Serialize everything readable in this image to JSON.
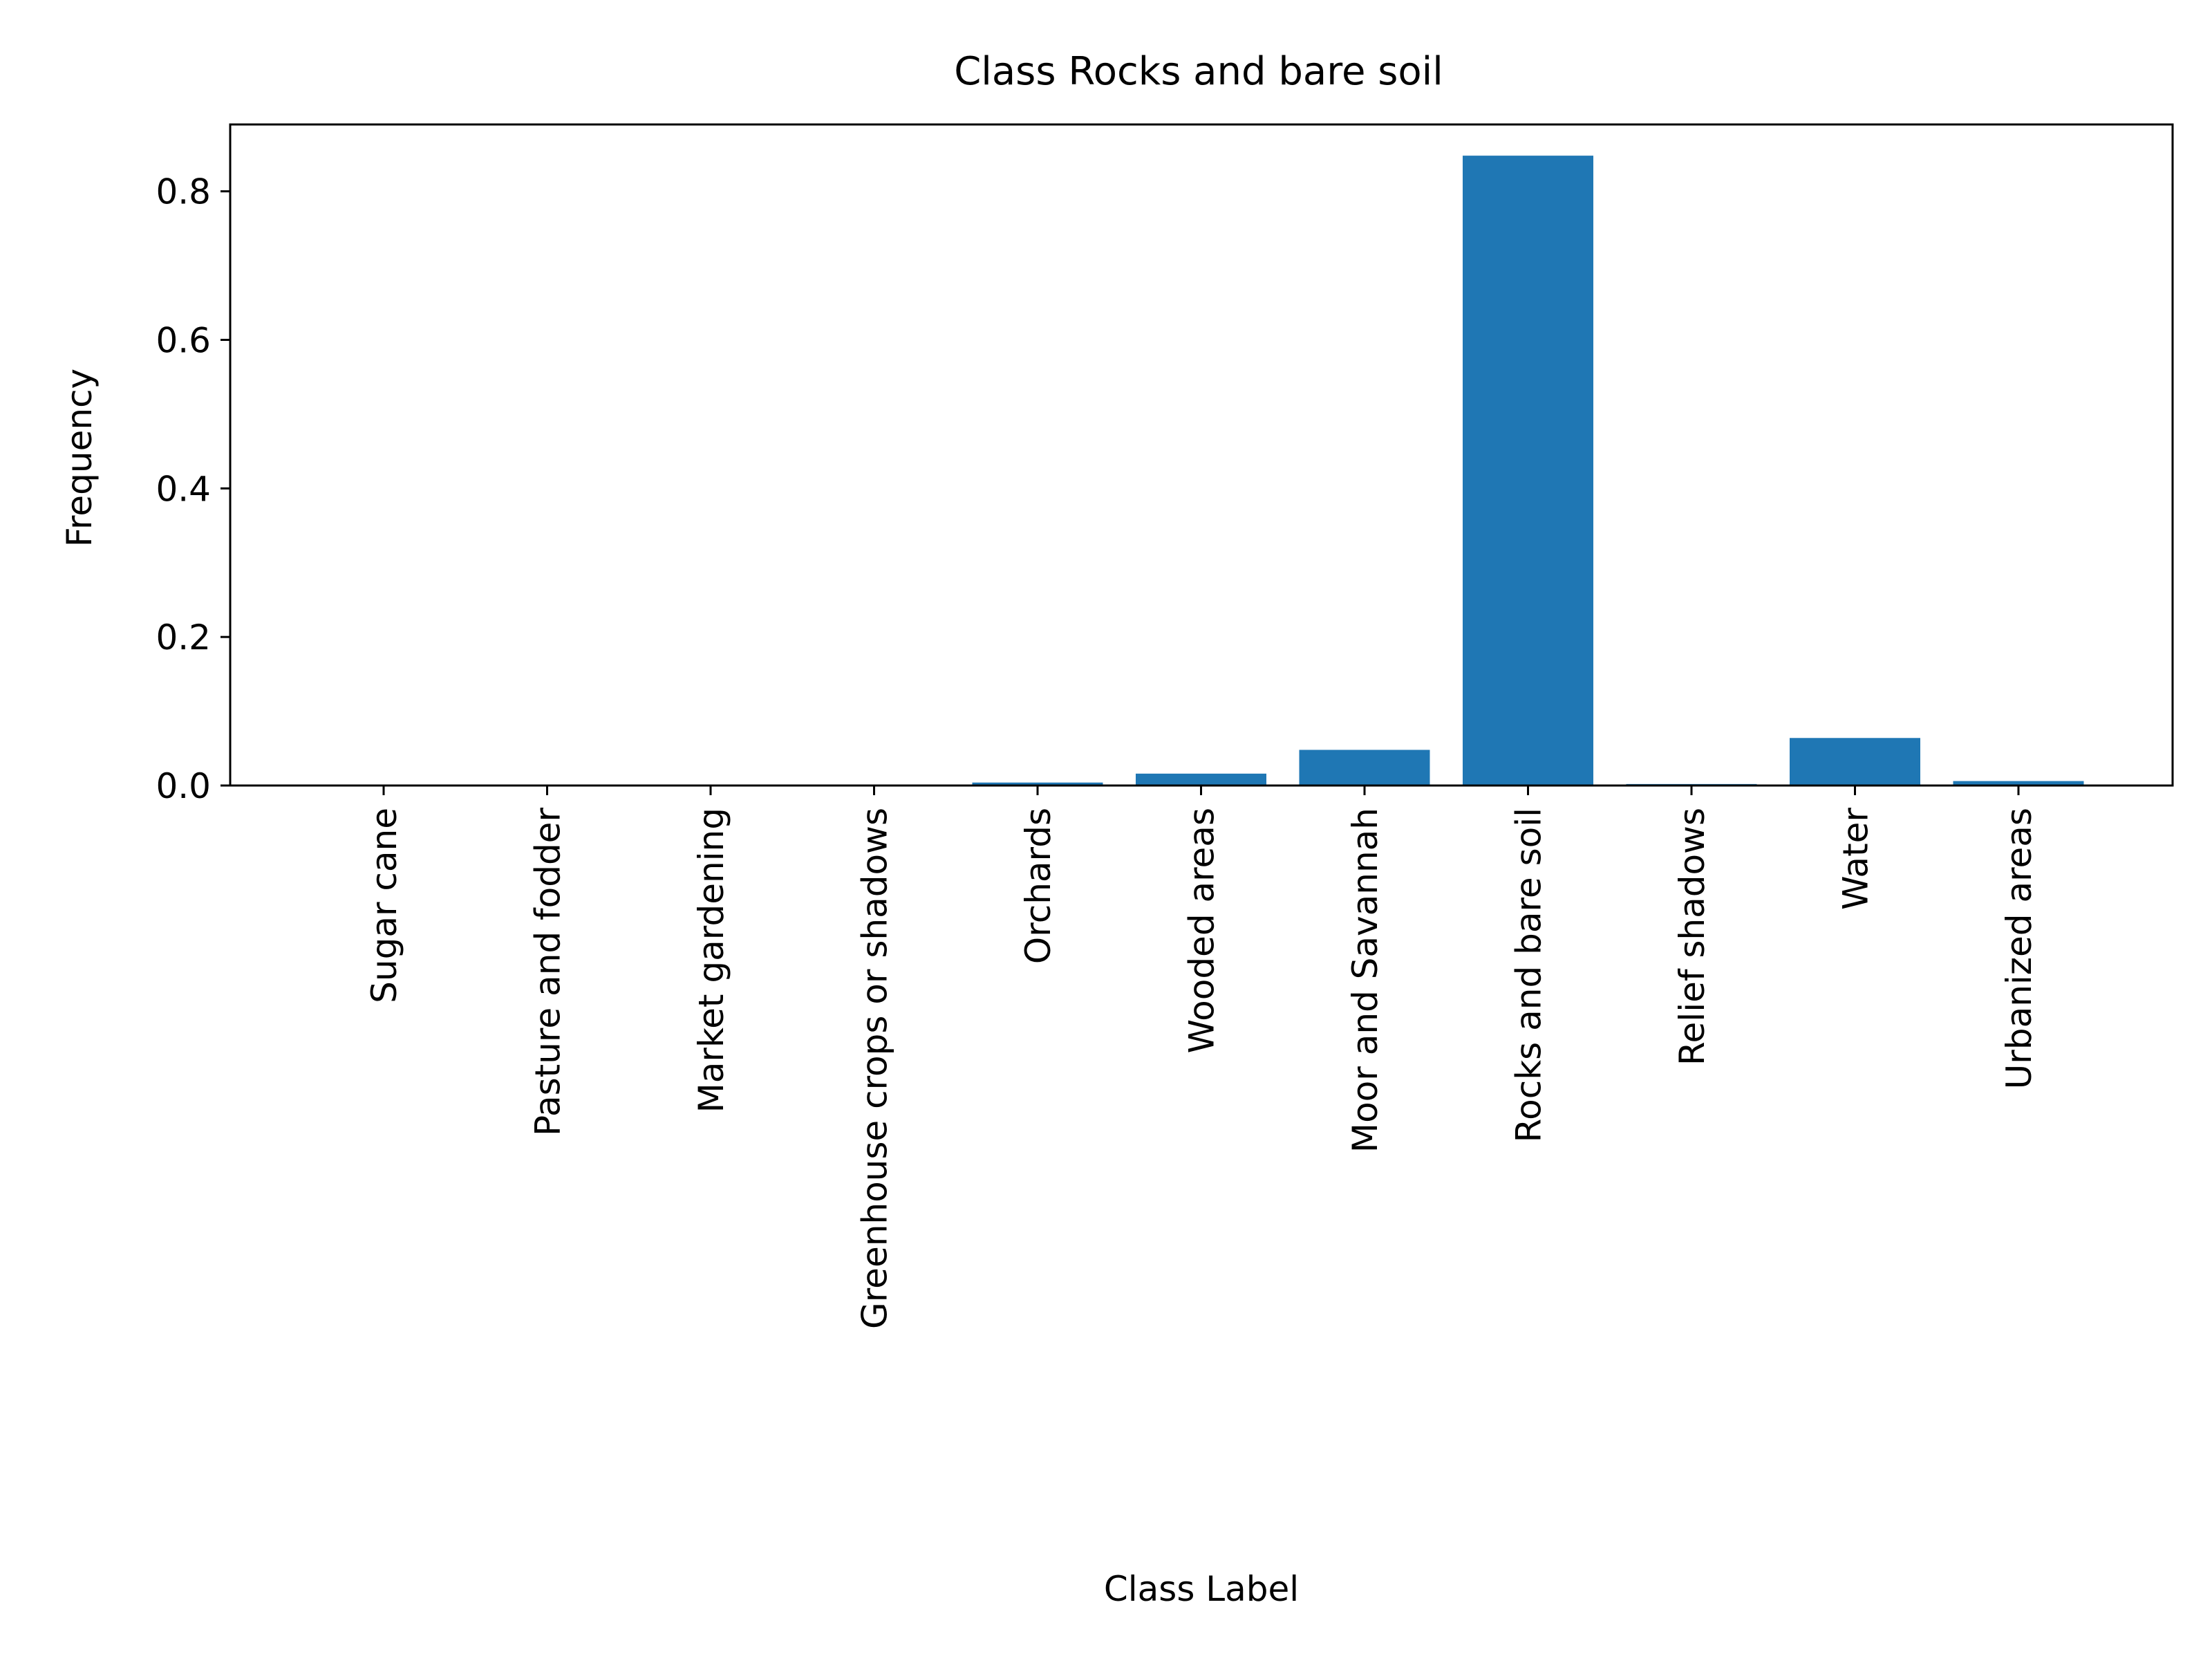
{
  "chart_data": {
    "type": "bar",
    "title": "Class Rocks and bare soil",
    "xlabel": "Class Label",
    "ylabel": "Frequency",
    "categories": [
      "Sugar cane",
      "Pasture and fodder",
      "Market gardening",
      "Greenhouse crops or shadows",
      "Orchards",
      "Wooded areas",
      "Moor and Savannah",
      "Rocks and bare soil",
      "Relief shadows",
      "Water",
      "Urbanized areas"
    ],
    "values": [
      0.0,
      0.0,
      0.0,
      0.0,
      0.004,
      0.016,
      0.048,
      0.848,
      0.002,
      0.064,
      0.006
    ],
    "ylim": [
      0,
      0.89
    ],
    "yticks": [
      0.0,
      0.2,
      0.4,
      0.6,
      0.8
    ],
    "ytick_labels": [
      "0.0",
      "0.2",
      "0.4",
      "0.6",
      "0.8"
    ],
    "bar_color": "#1f77b4",
    "grid": false,
    "legend": "none"
  }
}
